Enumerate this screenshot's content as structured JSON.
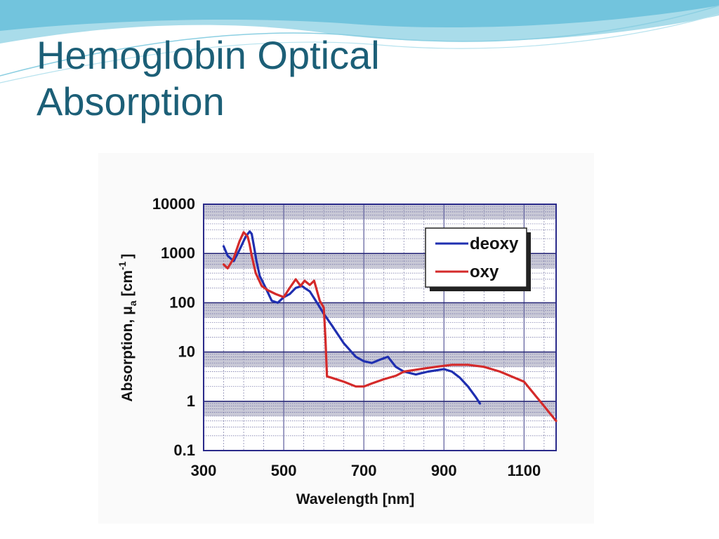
{
  "slide": {
    "title_line1": "Hemoglobin Optical",
    "title_line2": "Absorption",
    "title_color": "#1c5f77"
  },
  "chart_data": {
    "type": "line",
    "xlabel": "Wavelength [nm]",
    "ylabel": "Absorption, μ",
    "ylabel_subscript": "a",
    "ylabel_unit": "[cm",
    "ylabel_superscript": "-1",
    "ylabel_close": "]",
    "xlim": [
      300,
      1180
    ],
    "ylim": [
      0.1,
      10000
    ],
    "yscale": "log",
    "grid": true,
    "legend_position": "top-right",
    "x_ticks": [
      300,
      500,
      700,
      900,
      1100
    ],
    "x_tick_labels": [
      "300",
      "500",
      "700",
      "900",
      "1100"
    ],
    "y_ticks": [
      0.1,
      1,
      10,
      100,
      1000,
      10000
    ],
    "y_tick_labels": [
      "0.1",
      "1",
      "10",
      "100",
      "1000",
      "10000"
    ],
    "series": [
      {
        "name": "deoxy",
        "color": "#1f2fb0",
        "x": [
          350,
          360,
          375,
          390,
          405,
          415,
          420,
          425,
          432,
          440,
          455,
          470,
          485,
          500,
          515,
          530,
          545,
          556,
          565,
          580,
          600,
          620,
          650,
          680,
          700,
          720,
          740,
          760,
          780,
          800,
          830,
          860,
          900,
          920,
          940,
          960,
          980,
          990
        ],
        "y": [
          1400,
          900,
          700,
          1200,
          2200,
          2800,
          2500,
          1500,
          700,
          350,
          200,
          110,
          100,
          130,
          150,
          200,
          220,
          190,
          170,
          110,
          60,
          35,
          15,
          8,
          6.5,
          6,
          7,
          8,
          5,
          4,
          3.5,
          4,
          4.5,
          4,
          3,
          2,
          1.2,
          0.9
        ]
      },
      {
        "name": "oxy",
        "color": "#d42a2a",
        "x": [
          350,
          360,
          375,
          390,
          400,
          410,
          415,
          420,
          430,
          445,
          460,
          480,
          500,
          515,
          530,
          542,
          552,
          565,
          576,
          590,
          600,
          604,
          608,
          620,
          650,
          680,
          700,
          720,
          750,
          780,
          800,
          840,
          880,
          920,
          960,
          1000,
          1040,
          1100,
          1140,
          1180
        ],
        "y": [
          600,
          500,
          800,
          1800,
          2700,
          2200,
          1500,
          900,
          400,
          220,
          180,
          150,
          130,
          200,
          300,
          220,
          280,
          230,
          280,
          110,
          80,
          20,
          3.2,
          3,
          2.5,
          2,
          2,
          2.3,
          2.8,
          3.3,
          4,
          4.5,
          5,
          5.5,
          5.5,
          5,
          4,
          2.5,
          1,
          0.4
        ]
      }
    ]
  }
}
